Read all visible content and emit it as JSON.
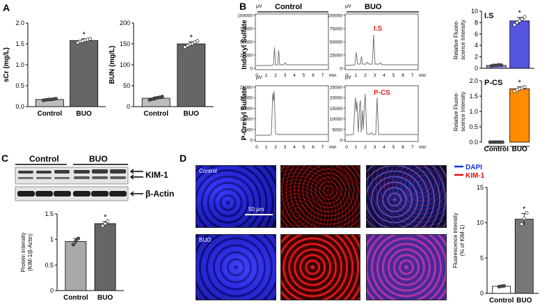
{
  "panels": {
    "A": "A",
    "B": "B",
    "C": "C",
    "D": "D"
  },
  "chartA1": {
    "ylabel": "sCr (mg/L)",
    "yticks": [
      "0.0",
      "0.5",
      "1.0",
      "1.5",
      "2.0"
    ],
    "ylim": [
      0,
      2
    ],
    "categories": [
      "Control",
      "BUO"
    ],
    "values": [
      0.17,
      1.58
    ],
    "errors": [
      0.02,
      0.04
    ],
    "points": [
      [
        0.15,
        0.16,
        0.17,
        0.17,
        0.18,
        0.19
      ],
      [
        1.53,
        1.56,
        1.57,
        1.59,
        1.6,
        1.62
      ]
    ],
    "star": "*",
    "colors": [
      "#bdbdbd",
      "#666666"
    ]
  },
  "chartA2": {
    "ylabel": "BUN (mg/L)",
    "yticks": [
      "0",
      "50",
      "100",
      "150",
      "200"
    ],
    "ylim": [
      0,
      200
    ],
    "categories": [
      "Control",
      "BUO"
    ],
    "values": [
      20,
      150
    ],
    "errors": [
      3,
      5
    ],
    "points": [
      [
        16,
        18,
        19,
        21,
        22,
        24
      ],
      [
        142,
        146,
        149,
        151,
        154,
        157
      ]
    ],
    "star": "*",
    "colors": [
      "#bdbdbd",
      "#666666"
    ]
  },
  "hplc": {
    "unit": "μV",
    "xunit": "min",
    "col_titles": [
      "Control",
      "BUO"
    ],
    "row_labels": [
      "Indoxyl Sulfate",
      "P-Cresyl Sulfate"
    ],
    "row1_yticks": [
      "100000",
      "75000",
      "50000",
      "25000",
      "0"
    ],
    "row2_yticks": [
      "25000",
      "20000",
      "15000",
      "10000",
      "5000",
      "0"
    ],
    "xticks": [
      "0",
      "1",
      "2",
      "3",
      "4",
      "5",
      "6",
      "7"
    ],
    "peak_labels": [
      "I.S",
      "P-CS"
    ]
  },
  "chartB1": {
    "title": "I.S",
    "ylabel1": "Relative Fluore-",
    "ylabel2": "scence Intensity",
    "yticks": [
      "0",
      "2",
      "4",
      "6",
      "8",
      "10"
    ],
    "ylim": [
      0,
      10
    ],
    "categories": [
      "Control",
      "BUO"
    ],
    "values": [
      0.5,
      8.3
    ],
    "errors": [
      0.1,
      0.6
    ],
    "points": [
      [
        0.4,
        0.5,
        0.5,
        0.6,
        0.55
      ],
      [
        7.6,
        8.0,
        8.3,
        8.6,
        9.0
      ]
    ],
    "star": "*",
    "colors": [
      "#9999ee",
      "#5555dd"
    ]
  },
  "chartB2": {
    "title": "P-CS",
    "ylabel1": "Relative Fluore-",
    "ylabel2": "scence Intensity",
    "yticks": [
      "0.0",
      "0.5",
      "1.0",
      "1.5",
      "2.0"
    ],
    "ylim": [
      0,
      2
    ],
    "categories": [
      "Control",
      "BUO"
    ],
    "values": [
      0.0,
      1.74
    ],
    "errors": [
      0.0,
      0.06
    ],
    "points": [
      [
        0,
        0,
        0,
        0,
        0,
        0
      ],
      [
        1.66,
        1.7,
        1.74,
        1.77,
        1.8
      ]
    ],
    "star": "*",
    "colors": [
      "#ff8c00",
      "#ff8c00"
    ]
  },
  "western": {
    "groups": [
      "Control",
      "BUO"
    ],
    "bands": [
      "KIM-1",
      "β-Actin"
    ]
  },
  "chartC": {
    "ylabel1": "Protein intensity",
    "ylabel2": "(KIM-1/β-Actin)",
    "yticks": [
      "0",
      "0.5",
      "1",
      "1.5"
    ],
    "ylim": [
      0,
      1.5
    ],
    "categories": [
      "Control",
      "BUO"
    ],
    "values": [
      0.96,
      1.31
    ],
    "errors": [
      0.06,
      0.04
    ],
    "points": [
      [
        0.9,
        0.97,
        1.02
      ],
      [
        1.27,
        1.31,
        1.36
      ]
    ],
    "star": "*",
    "colors": [
      "#a9a9a9",
      "#666666"
    ]
  },
  "micro": {
    "rows": [
      "Control",
      "BUO"
    ],
    "scale": "50 μm",
    "legend": [
      "DAPI",
      "KIM-1"
    ]
  },
  "chartD": {
    "ylabel1": "Fluorescence intensity",
    "ylabel2": "(% of KIM-1)",
    "yticks": [
      "0",
      "5",
      "10",
      "15"
    ],
    "ylim": [
      0,
      15
    ],
    "categories": [
      "Control",
      "BUO"
    ],
    "values": [
      1.0,
      10.5
    ],
    "errors": [
      0.1,
      0.8
    ],
    "points": [
      [
        0.95,
        1.0,
        1.05
      ],
      [
        9.8,
        10.6,
        11.4
      ]
    ],
    "star": "*",
    "colors": [
      "#ffffff",
      "#777777"
    ]
  }
}
